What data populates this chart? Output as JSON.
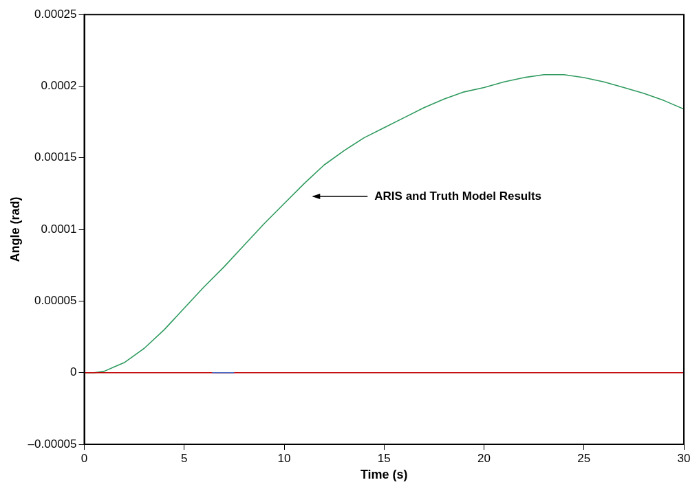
{
  "chart_data": {
    "type": "line",
    "xlabel": "Time (s)",
    "ylabel": "Angle (rad)",
    "xlim": [
      0,
      30
    ],
    "xticks": [
      0,
      5,
      10,
      15,
      20,
      25,
      30
    ],
    "ylim": [
      -5e-05,
      0.00025
    ],
    "yticks": [
      {
        "value": -5e-05,
        "label": "–0.00005"
      },
      0,
      {
        "value": 5e-05,
        "label": "0.00005"
      },
      0.0001,
      0.00015,
      0.0002,
      0.00025
    ],
    "grid": false,
    "legend": false,
    "marker": "none",
    "line_style": "solid",
    "series": [
      {
        "color": "#2e9a5e",
        "x": [
          0,
          0.5,
          1,
          1.5,
          2,
          3,
          4,
          5,
          6,
          7,
          8,
          9,
          10,
          11,
          12,
          13,
          14,
          15,
          16,
          17,
          18,
          19,
          20,
          21,
          22,
          23,
          24,
          25,
          26,
          27,
          28,
          29,
          30
        ],
        "values": [
          0,
          0,
          1e-06,
          4e-06,
          7e-06,
          1.7e-05,
          3e-05,
          4.5e-05,
          6e-05,
          7.4e-05,
          8.9e-05,
          0.000104,
          0.000118,
          0.000132,
          0.000145,
          0.000155,
          0.000164,
          0.000171,
          0.000178,
          0.000185,
          0.000191,
          0.000196,
          0.000199,
          0.000203,
          0.000206,
          0.000208,
          0.000208,
          0.000206,
          0.000203,
          0.000199,
          0.000195,
          0.00019,
          0.000184
        ]
      },
      {
        "color": "#c00000",
        "x": [
          0,
          30
        ],
        "values": [
          0,
          0
        ]
      },
      {
        "color": "#4060c0",
        "x": [
          6.4,
          7.5
        ],
        "values": [
          0,
          0
        ]
      }
    ],
    "annotations": [
      "ARIS and Truth Model Results"
    ]
  }
}
